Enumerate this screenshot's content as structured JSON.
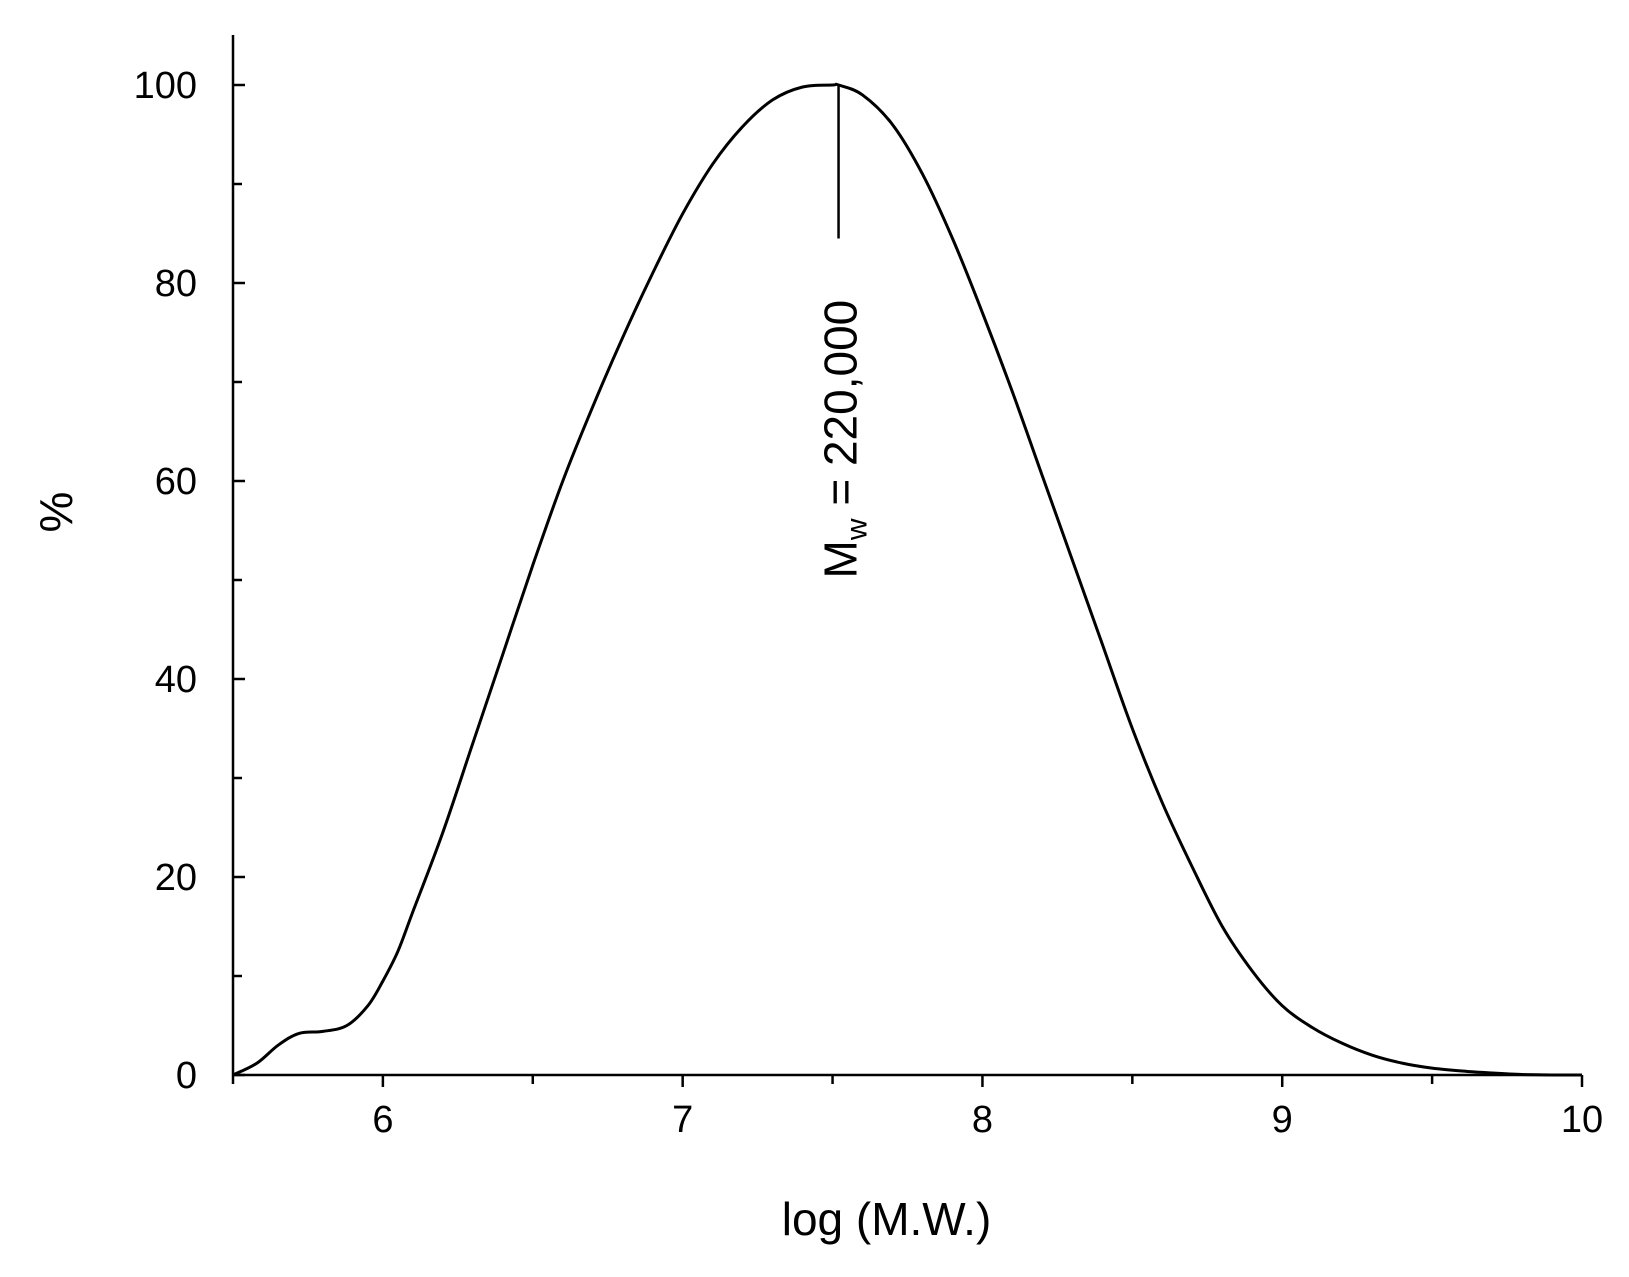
{
  "chart_data": {
    "type": "line",
    "title": "",
    "xlabel": "log (M.W.)",
    "ylabel": "%",
    "xlim": [
      5.5,
      10
    ],
    "ylim": [
      0,
      105
    ],
    "x_ticks": [
      6,
      7,
      8,
      9,
      10
    ],
    "x_tick_labels": [
      "6",
      "7",
      "8",
      "9",
      "10"
    ],
    "x_minor_ticks": [
      5.5,
      6.5,
      7.5,
      8.5,
      9.5
    ],
    "y_ticks": [
      0,
      20,
      40,
      60,
      80,
      100
    ],
    "y_tick_labels": [
      "0",
      "20",
      "40",
      "60",
      "80",
      "100"
    ],
    "y_minor_ticks": [
      10,
      30,
      50,
      70,
      90
    ],
    "grid": false,
    "legend": "none",
    "line_color": "#000000",
    "series": [
      {
        "x": [
          5.5,
          5.58,
          5.65,
          5.72,
          5.8,
          5.88,
          5.95,
          6.0,
          6.05,
          6.1,
          6.2,
          6.3,
          6.4,
          6.5,
          6.6,
          6.7,
          6.8,
          6.9,
          7.0,
          7.1,
          7.2,
          7.3,
          7.4,
          7.5,
          7.52,
          7.6,
          7.7,
          7.8,
          7.9,
          8.0,
          8.1,
          8.2,
          8.3,
          8.4,
          8.5,
          8.6,
          8.7,
          8.8,
          8.9,
          9.0,
          9.1,
          9.2,
          9.3,
          9.4,
          9.5,
          9.6,
          9.7,
          9.8,
          9.9,
          10.0
        ],
        "y": [
          0,
          1.2,
          3.0,
          4.2,
          4.4,
          5.0,
          7.0,
          9.5,
          12.5,
          16.5,
          24.5,
          33.5,
          42.5,
          51.5,
          60.0,
          67.5,
          74.5,
          81.0,
          87.0,
          92.0,
          95.8,
          98.5,
          99.8,
          100,
          100,
          99.0,
          96.0,
          91.0,
          84.5,
          77.0,
          69.0,
          60.5,
          52.0,
          43.5,
          35.0,
          27.5,
          21.0,
          15.0,
          10.5,
          7.0,
          4.8,
          3.2,
          2.0,
          1.2,
          0.7,
          0.4,
          0.2,
          0.05,
          0,
          0
        ]
      }
    ],
    "annotations": [
      {
        "text_main": "M",
        "text_sub": "w",
        "text_rest": " = 220,000",
        "x": 7.52,
        "y": 100,
        "leader_to_y": 84.5,
        "orientation": "vertical"
      }
    ]
  }
}
